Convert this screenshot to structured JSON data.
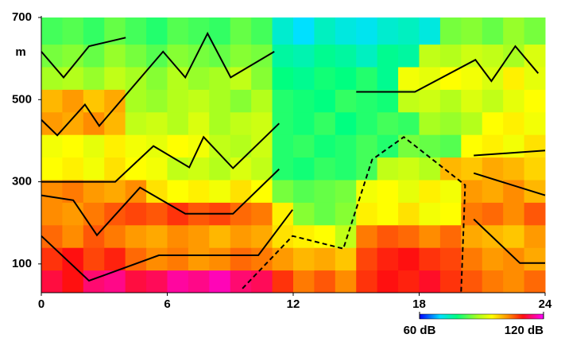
{
  "chart_data": {
    "type": "heatmap",
    "y_unit": "m",
    "xlim": [
      0,
      24
    ],
    "xticks": [
      0,
      6,
      12,
      18,
      24
    ],
    "ylim": [
      30,
      700
    ],
    "yticks": [
      100,
      300,
      500,
      700
    ],
    "x_edges": [
      0,
      1,
      2,
      3,
      4,
      5,
      6,
      7,
      8,
      9,
      10,
      11,
      12,
      13,
      14,
      15,
      16,
      17,
      18,
      19,
      20,
      21,
      22,
      23,
      24
    ],
    "y_edges": [
      30,
      85,
      140,
      195,
      250,
      305,
      360,
      415,
      470,
      525,
      580,
      635,
      700
    ],
    "z": [
      [
        112,
        110,
        114,
        115,
        112,
        113,
        116,
        115,
        117,
        114,
        113,
        108,
        104,
        106,
        103,
        108,
        110,
        109,
        111,
        108,
        106,
        104,
        103,
        105
      ],
      [
        108,
        110,
        107,
        109,
        105,
        103,
        104,
        102,
        103,
        105,
        104,
        102,
        100,
        101,
        99,
        107,
        109,
        110,
        108,
        107,
        104,
        102,
        103,
        101
      ],
      [
        105,
        103,
        106,
        104,
        102,
        101,
        103,
        102,
        100,
        102,
        101,
        97,
        96,
        95,
        90,
        104,
        106,
        105,
        103,
        105,
        101,
        100,
        99,
        102
      ],
      [
        103,
        102,
        104,
        106,
        107,
        106,
        108,
        106,
        107,
        105,
        104,
        96,
        86,
        84,
        86,
        96,
        95,
        97,
        94,
        95,
        104,
        105,
        103,
        106
      ],
      [
        103,
        104,
        102,
        101,
        103,
        97,
        95,
        96,
        94,
        97,
        95,
        85,
        83,
        84,
        85,
        94,
        95,
        93,
        96,
        94,
        102,
        101,
        103,
        100
      ],
      [
        95,
        96,
        94,
        97,
        95,
        94,
        90,
        91,
        89,
        92,
        90,
        80,
        79,
        81,
        80,
        82,
        90,
        91,
        89,
        100,
        99,
        101,
        100,
        98
      ],
      [
        94,
        95,
        93,
        96,
        94,
        93,
        95,
        94,
        90,
        89,
        91,
        80,
        81,
        79,
        80,
        82,
        80,
        85,
        84,
        83,
        95,
        96,
        94,
        97
      ],
      [
        102,
        101,
        103,
        100,
        90,
        91,
        89,
        92,
        88,
        90,
        91,
        80,
        79,
        81,
        78,
        80,
        82,
        81,
        88,
        87,
        89,
        95,
        96,
        94
      ],
      [
        100,
        102,
        99,
        101,
        88,
        87,
        89,
        90,
        88,
        86,
        89,
        80,
        79,
        78,
        81,
        80,
        79,
        90,
        91,
        89,
        92,
        90,
        93,
        95
      ],
      [
        88,
        89,
        87,
        90,
        88,
        86,
        89,
        87,
        88,
        90,
        86,
        78,
        77,
        79,
        78,
        80,
        77,
        94,
        93,
        95,
        94,
        92,
        96,
        93
      ],
      [
        85,
        86,
        84,
        87,
        85,
        83,
        86,
        85,
        84,
        86,
        85,
        76,
        75,
        77,
        76,
        74,
        77,
        76,
        90,
        89,
        91,
        90,
        88,
        92
      ],
      [
        82,
        83,
        81,
        84,
        82,
        80,
        83,
        82,
        81,
        84,
        82,
        73,
        70,
        74,
        72,
        71,
        73,
        74,
        72,
        85,
        86,
        84,
        87,
        85
      ]
    ],
    "colormap": [
      {
        "value": 60,
        "color": "#0000ff"
      },
      {
        "value": 70,
        "color": "#00e0ff"
      },
      {
        "value": 78,
        "color": "#00ff80"
      },
      {
        "value": 88,
        "color": "#a8ff20"
      },
      {
        "value": 95,
        "color": "#ffff00"
      },
      {
        "value": 103,
        "color": "#ff8c00"
      },
      {
        "value": 110,
        "color": "#ff1010"
      },
      {
        "value": 120,
        "color": "#ff00ff"
      }
    ],
    "colorbar": {
      "lim": [
        60,
        120
      ],
      "ticks": [
        {
          "value": 60,
          "label": "60 dB"
        },
        {
          "value": 120,
          "label": "120 dB"
        }
      ]
    },
    "line_color": "#000000",
    "lines": [
      {
        "dashed": false,
        "x": [
          0,
          1.06,
          2.27,
          4.02
        ],
        "y": [
          617,
          554,
          630,
          651
        ]
      },
      {
        "dashed": false,
        "x": [
          0,
          0.76,
          2.08,
          2.76,
          5.8,
          6.86,
          7.92,
          9.02,
          11.1
        ],
        "y": [
          451,
          413,
          488,
          436,
          617,
          554,
          661,
          554,
          617
        ]
      },
      {
        "dashed": false,
        "x": [
          0,
          3.52,
          5.34,
          7.05,
          7.73,
          9.13,
          11.33
        ],
        "y": [
          300,
          300,
          387,
          335,
          409,
          333,
          442
        ]
      },
      {
        "dashed": false,
        "x": [
          0,
          1.52,
          2.65,
          4.7,
          6.86,
          9.13,
          11.33
        ],
        "y": [
          267,
          255,
          170,
          286,
          222,
          222,
          331
        ]
      },
      {
        "dashed": false,
        "x": [
          0,
          2.27,
          5.6,
          10.34,
          11.97
        ],
        "y": [
          168,
          59,
          121,
          121,
          232
        ]
      },
      {
        "dashed": true,
        "x": [
          9.58,
          11.97,
          14.39,
          15.76,
          17.27,
          20.19,
          20.0
        ],
        "y": [
          40,
          168,
          137,
          354,
          409,
          292,
          32
        ]
      },
      {
        "dashed": false,
        "x": [
          15.0,
          17.8,
          20.68,
          21.44,
          22.58,
          23.67
        ],
        "y": [
          519,
          519,
          597,
          545,
          630,
          564
        ]
      },
      {
        "dashed": false,
        "x": [
          20.6,
          24
        ],
        "y": [
          364,
          376
        ]
      },
      {
        "dashed": false,
        "x": [
          20.6,
          24
        ],
        "y": [
          321,
          267
        ]
      },
      {
        "dashed": false,
        "x": [
          20.6,
          22.8,
          24
        ],
        "y": [
          209,
          102,
          102
        ]
      }
    ]
  }
}
